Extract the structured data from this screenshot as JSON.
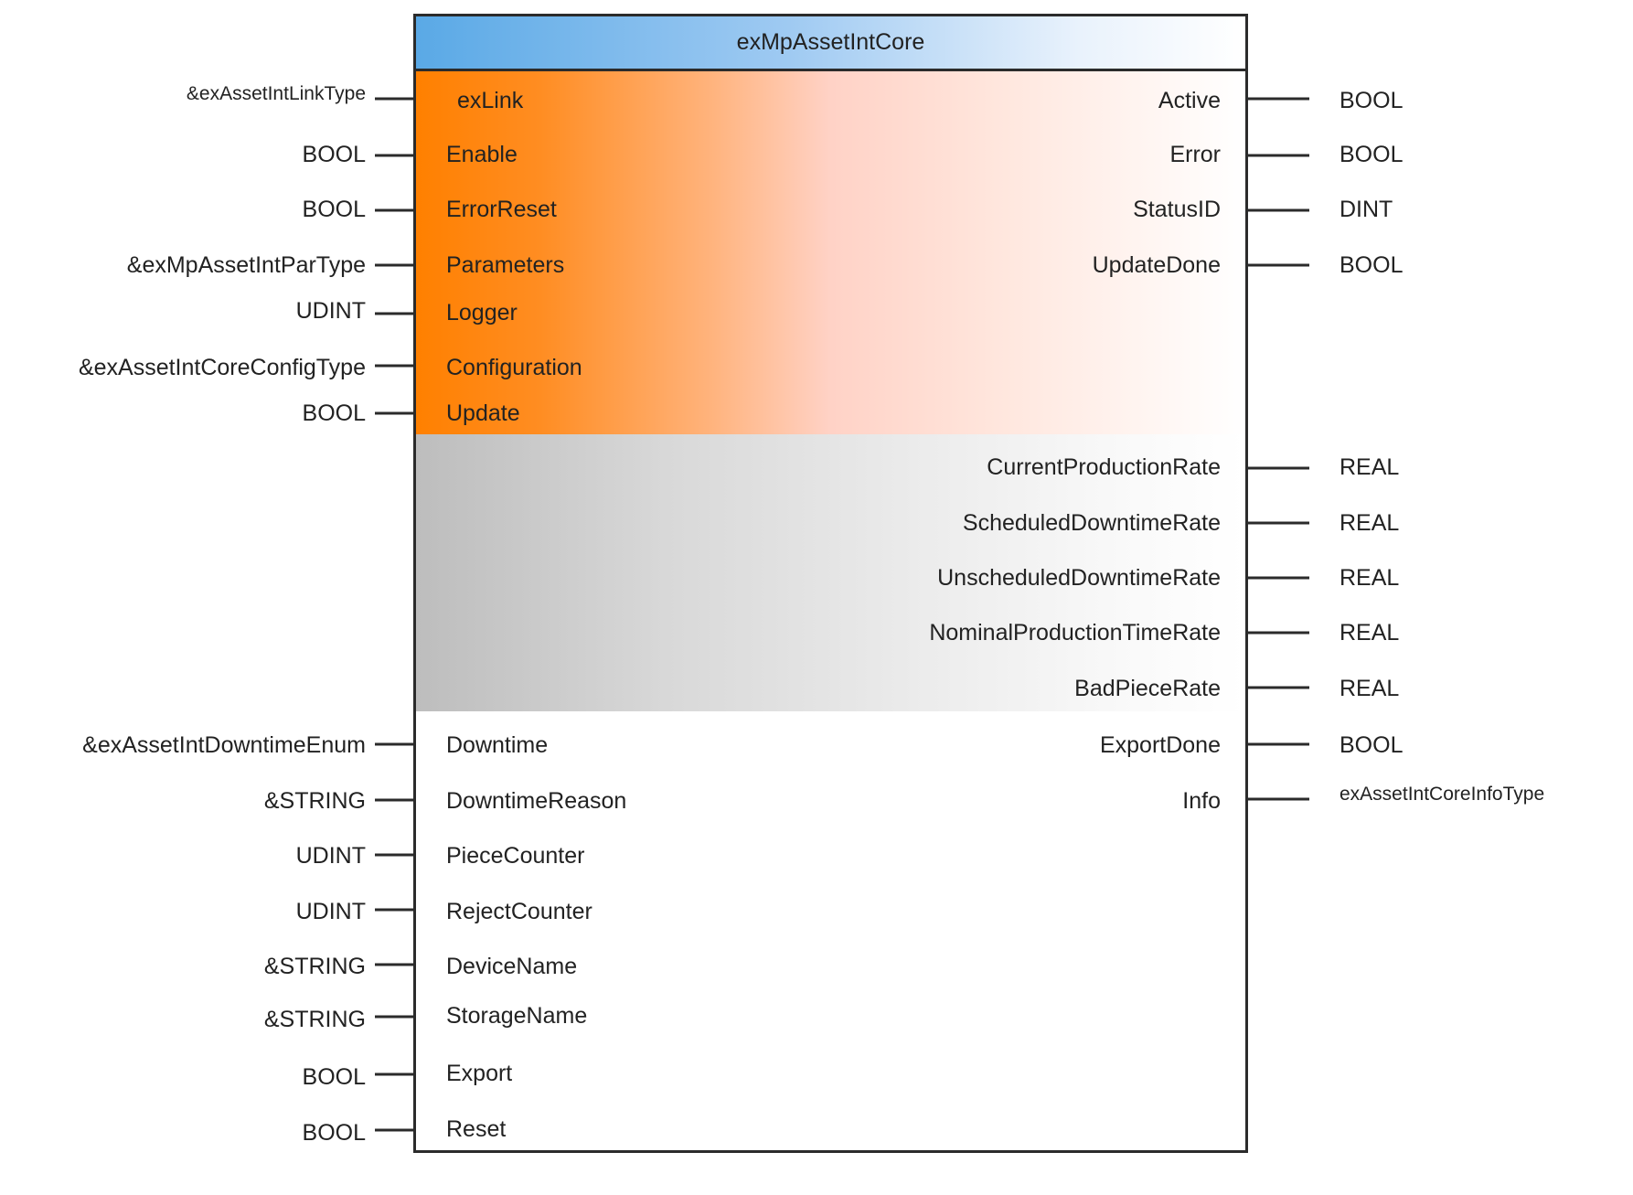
{
  "block": {
    "title": "exMpAssetIntCore"
  },
  "inputs": [
    {
      "type": "&exAssetIntLinkType",
      "pin": "exLink"
    },
    {
      "type": "BOOL",
      "pin": "Enable"
    },
    {
      "type": "BOOL",
      "pin": "ErrorReset"
    },
    {
      "type": "&exMpAssetIntParType",
      "pin": "Parameters"
    },
    {
      "type": "UDINT",
      "pin": "Logger"
    },
    {
      "type": "&exAssetIntCoreConfigType",
      "pin": "Configuration"
    },
    {
      "type": "BOOL",
      "pin": "Update"
    },
    {
      "type": "&exAssetIntDowntimeEnum",
      "pin": "Downtime"
    },
    {
      "type": "&STRING",
      "pin": "DowntimeReason"
    },
    {
      "type": "UDINT",
      "pin": "PieceCounter"
    },
    {
      "type": "UDINT",
      "pin": "RejectCounter"
    },
    {
      "type": "&STRING",
      "pin": "DeviceName"
    },
    {
      "type": "&STRING",
      "pin": "StorageName"
    },
    {
      "type": "BOOL",
      "pin": "Export"
    },
    {
      "type": "BOOL",
      "pin": "Reset"
    }
  ],
  "outputs": [
    {
      "pin": "Active",
      "type": "BOOL"
    },
    {
      "pin": "Error",
      "type": "BOOL"
    },
    {
      "pin": "StatusID",
      "type": "DINT"
    },
    {
      "pin": "UpdateDone",
      "type": "BOOL"
    },
    {
      "pin": "CurrentProductionRate",
      "type": "REAL"
    },
    {
      "pin": "ScheduledDowntimeRate",
      "type": "REAL"
    },
    {
      "pin": "UnscheduledDowntimeRate",
      "type": "REAL"
    },
    {
      "pin": "NominalProductionTimeRate",
      "type": "REAL"
    },
    {
      "pin": "BadPieceRate",
      "type": "REAL"
    },
    {
      "pin": "ExportDone",
      "type": "BOOL"
    },
    {
      "pin": "Info",
      "type": "exAssetIntCoreInfoType"
    }
  ],
  "colors": {
    "frame": "#2b2b2b",
    "header_accent": "#5aa9e6",
    "orange_section": "#ff8000",
    "gray_section": "#bdbdbd",
    "text": "#222222"
  }
}
